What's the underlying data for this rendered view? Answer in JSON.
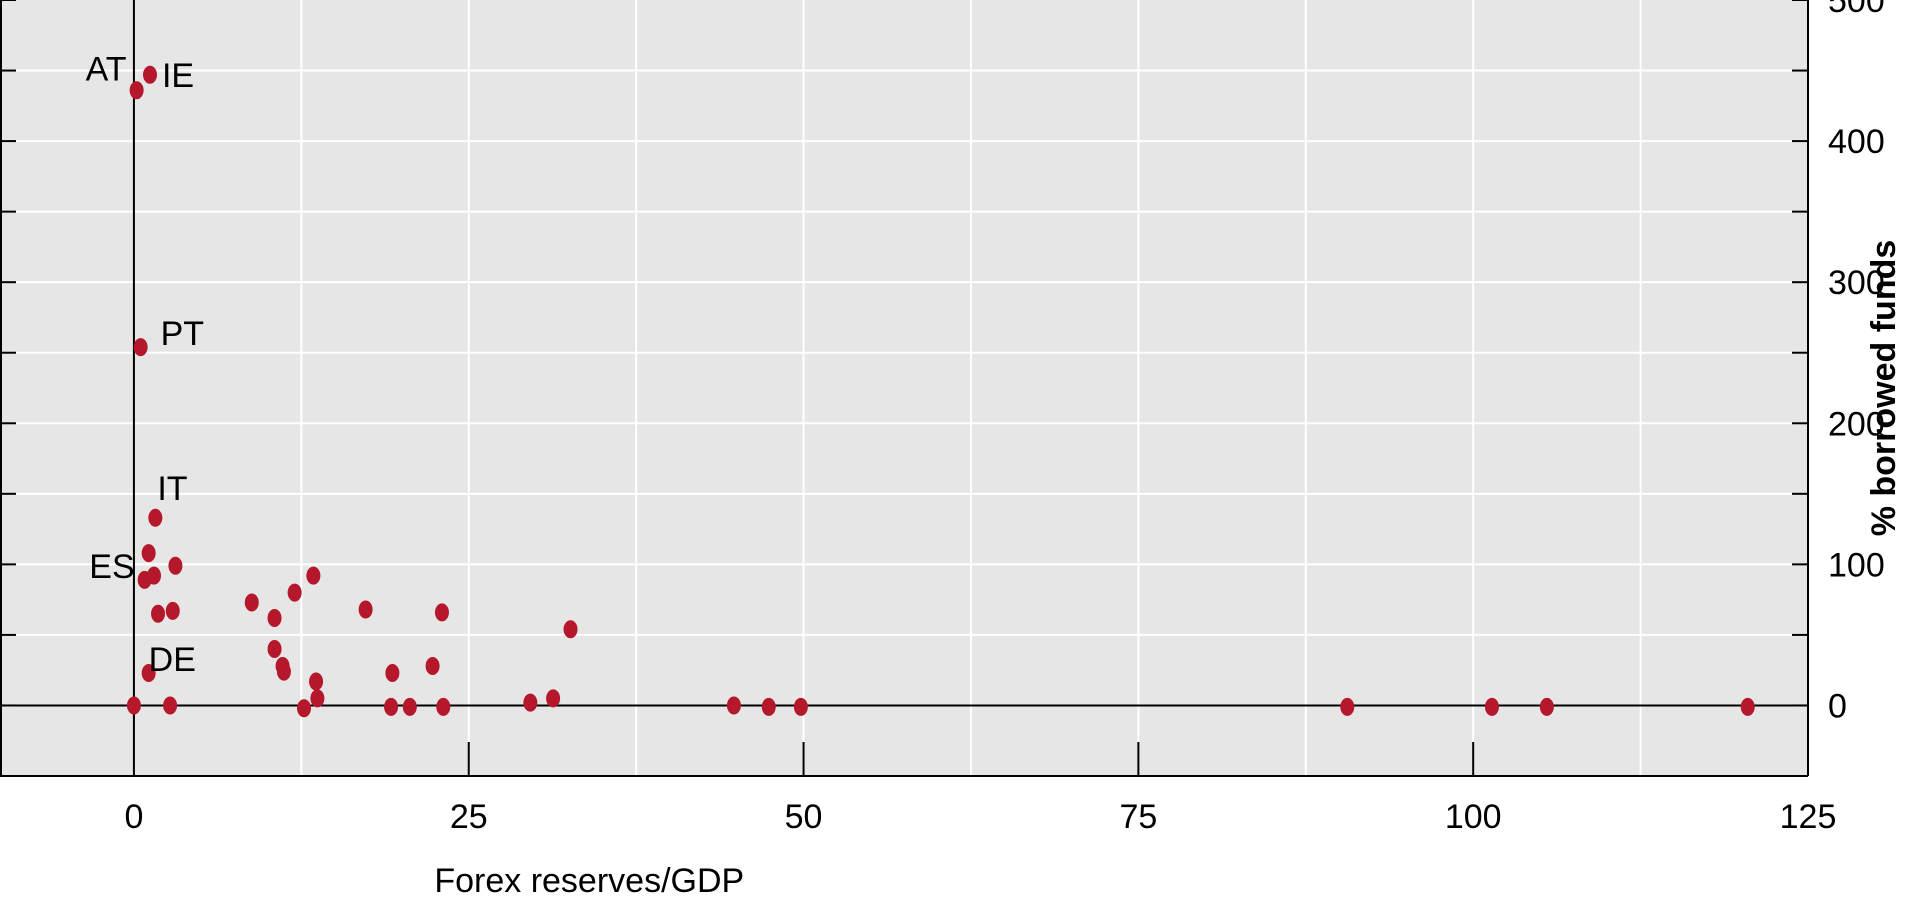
{
  "chart_data": {
    "type": "scatter",
    "title": "",
    "xlabel": "Forex reserves/GDP",
    "ylabel": "% borrowed funds",
    "xlim": [
      -10,
      125
    ],
    "ylim": [
      -50,
      500
    ],
    "x_ticks": [
      0,
      25,
      50,
      75,
      100,
      125
    ],
    "y_ticks": [
      0,
      100,
      200,
      300,
      400,
      500
    ],
    "x_gridlines": [
      0,
      12.5,
      25,
      37.5,
      50,
      62.5,
      75,
      87.5,
      100,
      112.5
    ],
    "y_gridlines": [
      0,
      50,
      100,
      150,
      200,
      250,
      300,
      350,
      400,
      450
    ],
    "y_axis_side": "right",
    "grid": true,
    "colors": {
      "background": "#e6e6e6",
      "grid": "#ffffff",
      "marker": "#b5172b",
      "axis": "#000000"
    },
    "points": [
      {
        "x": 0.2,
        "y": 436,
        "label": "AT"
      },
      {
        "x": 1.2,
        "y": 447,
        "label": "IE"
      },
      {
        "x": 0.5,
        "y": 254,
        "label": "PT"
      },
      {
        "x": 1.6,
        "y": 133,
        "label": "IT"
      },
      {
        "x": 0.8,
        "y": 89,
        "label": "ES"
      },
      {
        "x": 1.1,
        "y": 23,
        "label": "DE"
      },
      {
        "x": 1.1,
        "y": 108,
        "label": ""
      },
      {
        "x": 1.5,
        "y": 92,
        "label": ""
      },
      {
        "x": 3.1,
        "y": 99,
        "label": ""
      },
      {
        "x": 1.8,
        "y": 65,
        "label": ""
      },
      {
        "x": 2.9,
        "y": 67,
        "label": ""
      },
      {
        "x": 0.0,
        "y": 0,
        "label": ""
      },
      {
        "x": 2.7,
        "y": 0,
        "label": ""
      },
      {
        "x": 8.8,
        "y": 73,
        "label": ""
      },
      {
        "x": 10.5,
        "y": 62,
        "label": ""
      },
      {
        "x": 12.0,
        "y": 80,
        "label": ""
      },
      {
        "x": 13.4,
        "y": 92,
        "label": ""
      },
      {
        "x": 10.5,
        "y": 40,
        "label": ""
      },
      {
        "x": 11.1,
        "y": 28,
        "label": ""
      },
      {
        "x": 11.2,
        "y": 24,
        "label": ""
      },
      {
        "x": 13.6,
        "y": 17,
        "label": ""
      },
      {
        "x": 13.7,
        "y": 5,
        "label": ""
      },
      {
        "x": 12.7,
        "y": -2,
        "label": ""
      },
      {
        "x": 17.3,
        "y": 68,
        "label": ""
      },
      {
        "x": 19.3,
        "y": 23,
        "label": ""
      },
      {
        "x": 19.2,
        "y": -1,
        "label": ""
      },
      {
        "x": 20.6,
        "y": -1,
        "label": ""
      },
      {
        "x": 22.3,
        "y": 28,
        "label": ""
      },
      {
        "x": 23.0,
        "y": 66,
        "label": ""
      },
      {
        "x": 23.1,
        "y": -1,
        "label": ""
      },
      {
        "x": 29.6,
        "y": 2,
        "label": ""
      },
      {
        "x": 31.3,
        "y": 5,
        "label": ""
      },
      {
        "x": 32.6,
        "y": 54,
        "label": ""
      },
      {
        "x": 44.8,
        "y": 0,
        "label": ""
      },
      {
        "x": 47.4,
        "y": -1,
        "label": ""
      },
      {
        "x": 49.8,
        "y": -1,
        "label": ""
      },
      {
        "x": 90.6,
        "y": -1,
        "label": ""
      },
      {
        "x": 101.4,
        "y": -1,
        "label": ""
      },
      {
        "x": 105.5,
        "y": -1,
        "label": ""
      },
      {
        "x": 120.5,
        "y": -1,
        "label": ""
      }
    ]
  }
}
